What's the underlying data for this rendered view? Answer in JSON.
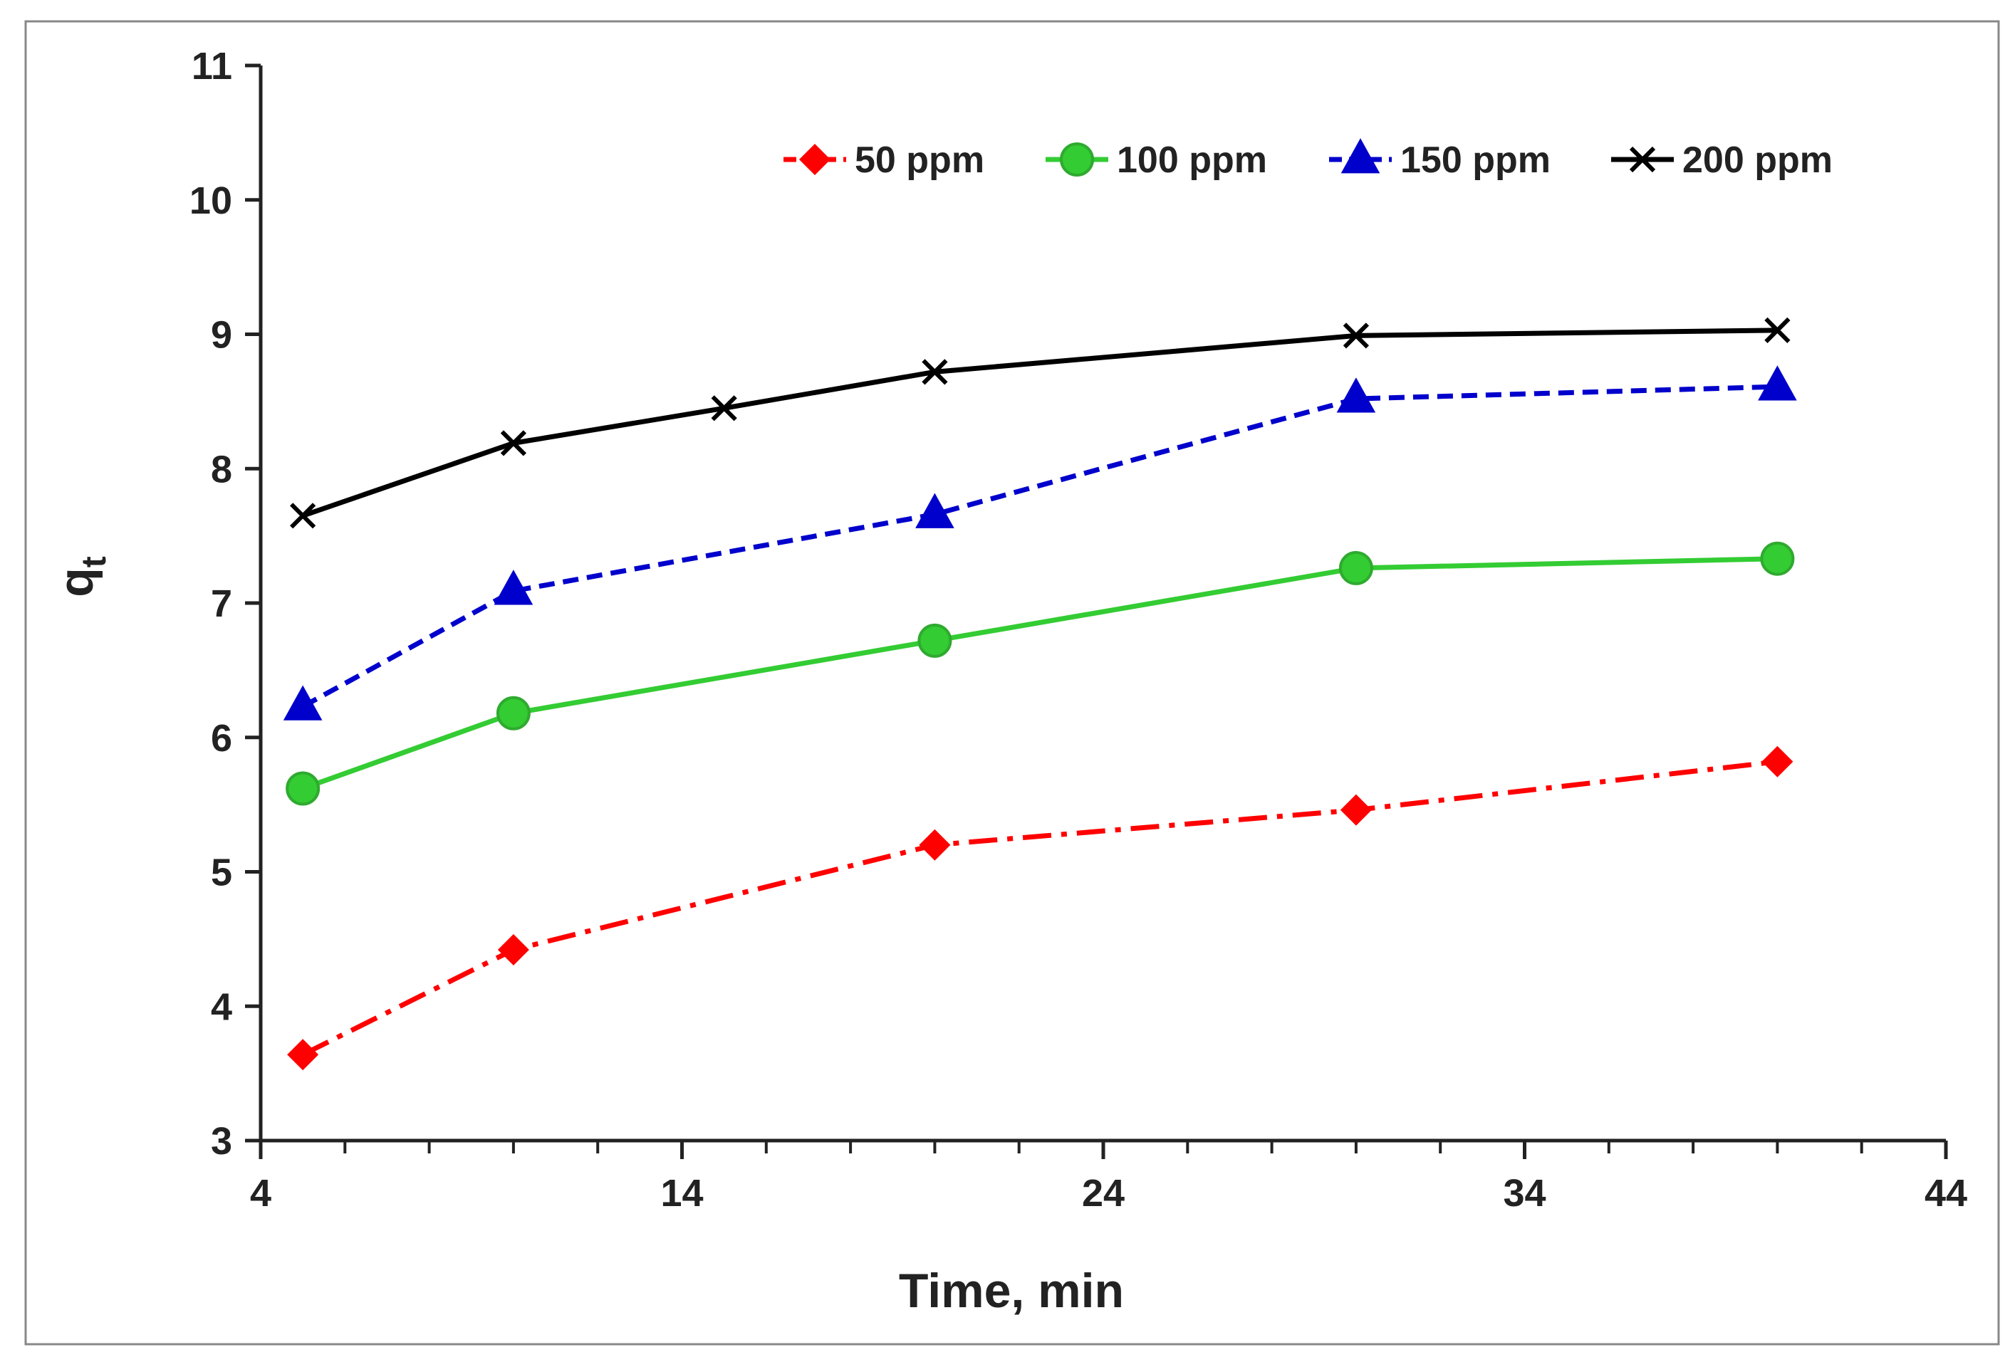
{
  "chart_data": {
    "type": "line",
    "title": "",
    "xlabel": "Time, min",
    "ylabel": "q",
    "ylabel_subscript": "t",
    "xlim": [
      4,
      44
    ],
    "ylim": [
      3,
      11
    ],
    "x_ticks": [
      4,
      14,
      24,
      34,
      44
    ],
    "y_ticks": [
      3,
      4,
      5,
      6,
      7,
      8,
      9,
      10,
      11
    ],
    "x_minor_step": 2,
    "grid": false,
    "legend_position": "top-right",
    "series": [
      {
        "name": "50 ppm",
        "color": "#ff0000",
        "marker": "diamond",
        "dash": "dashdot",
        "x": [
          5,
          10,
          20,
          30,
          40
        ],
        "values": [
          3.64,
          4.42,
          5.2,
          5.46,
          5.82
        ]
      },
      {
        "name": "100 ppm",
        "color": "#33cc33",
        "marker": "circle",
        "dash": "solid",
        "x": [
          5,
          10,
          20,
          30,
          40
        ],
        "values": [
          5.62,
          6.18,
          6.72,
          7.26,
          7.33
        ]
      },
      {
        "name": "150 ppm",
        "color": "#0000cc",
        "marker": "triangle",
        "dash": "dashed",
        "x": [
          5,
          10,
          20,
          30,
          40
        ],
        "values": [
          6.23,
          7.09,
          7.66,
          8.52,
          8.61
        ]
      },
      {
        "name": "200 ppm",
        "color": "#000000",
        "marker": "x",
        "dash": "solid",
        "x": [
          5,
          10,
          15,
          20,
          30,
          40
        ],
        "values": [
          7.65,
          8.19,
          8.45,
          8.72,
          8.99,
          9.03
        ]
      }
    ]
  }
}
